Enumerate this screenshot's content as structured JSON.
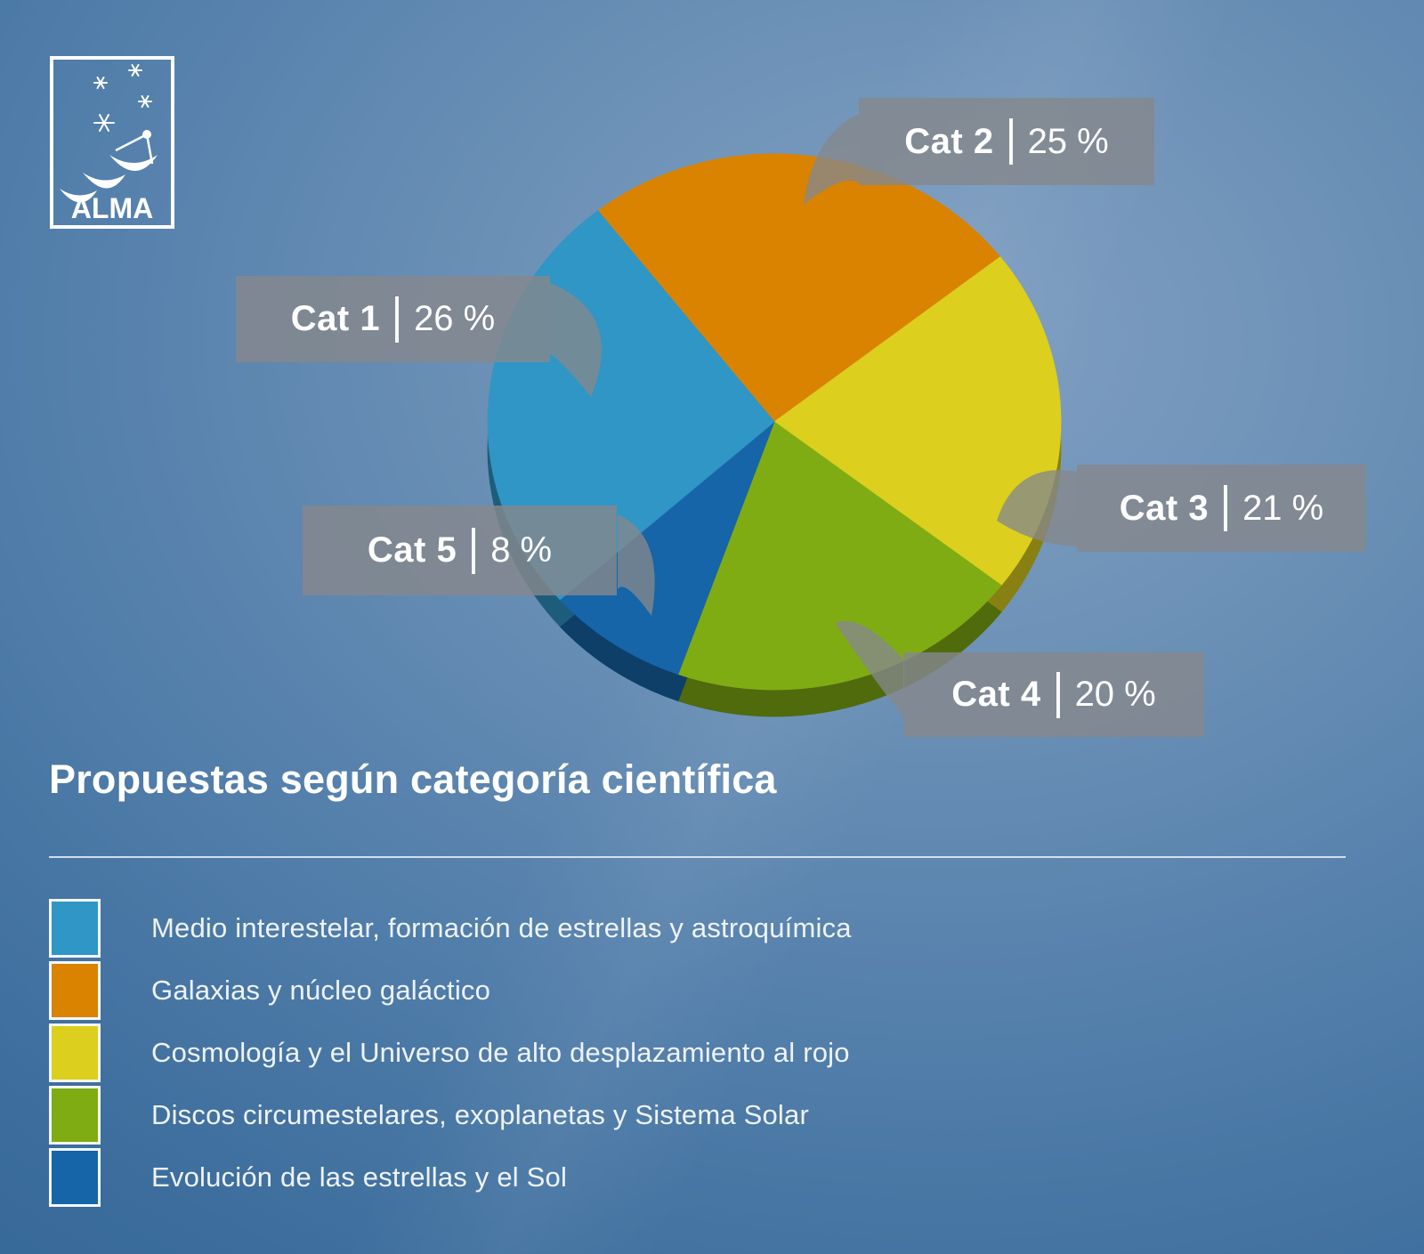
{
  "logo": {
    "name": "ALMA"
  },
  "title": "Propuestas según categoría científica",
  "colors": {
    "cat1_blue": "#2F96C6",
    "cat2_orange": "#D98300",
    "cat3_yellow": "#DCCF1E",
    "cat4_green": "#80AC13",
    "cat5_darkblue": "#1565A8",
    "callout_gray": "rgba(133,136,140,0.82)",
    "background_light": "#80 9fc2",
    "background_dark": "#2c5f8e"
  },
  "chart_data": {
    "type": "pie",
    "style": "3d",
    "start_angle_deg": 128,
    "direction": "clockwise",
    "slices": [
      {
        "cat_label": "Cat 2",
        "value": 25,
        "pct_label": "25 %",
        "color": "#D98300",
        "legend": "Galaxias y núcleo galáctico"
      },
      {
        "cat_label": "Cat 3",
        "value": 21,
        "pct_label": "21 %",
        "color": "#DCCF1E",
        "legend": "Cosmología y el Universo de alto desplazamiento al rojo"
      },
      {
        "cat_label": "Cat 4",
        "value": 20,
        "pct_label": "20 %",
        "color": "#80AC13",
        "legend": "Discos circumestelares, exoplanetas y Sistema Solar"
      },
      {
        "cat_label": "Cat 5",
        "value": 8,
        "pct_label": "8 %",
        "color": "#1565A8",
        "legend": "Evolución de las estrellas y el Sol"
      },
      {
        "cat_label": "Cat 1",
        "value": 26,
        "pct_label": "26 %",
        "color": "#2F96C6",
        "legend": "Medio interestelar, formación de estrellas y astroquímica"
      }
    ],
    "legend_display_order_slice_indexes": [
      4,
      0,
      1,
      2,
      3
    ],
    "title": "Propuestas según categoría científica"
  }
}
